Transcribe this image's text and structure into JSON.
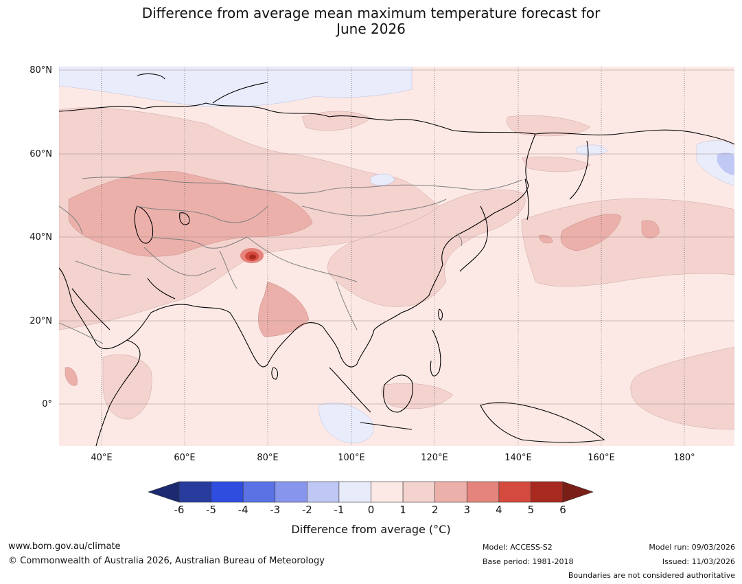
{
  "title": {
    "line1": "Difference from average mean maximum temperature forecast for",
    "line2": "June 2026"
  },
  "map": {
    "lat_labels": [
      "80°N",
      "60°N",
      "40°N",
      "20°N",
      "0°"
    ],
    "lon_labels": [
      "40°E",
      "60°E",
      "80°E",
      "100°E",
      "120°E",
      "140°E",
      "160°E",
      "180°"
    ],
    "ocean_color": "#fce9e6",
    "anomaly_colors": {
      "neg1_0": "#e9ecfa",
      "neg2_neg1": "#c0c8f4",
      "0_1": "#fce9e6",
      "1_2": "#f4d2ce",
      "2_3": "#ecb0aa",
      "3_4": "#e4847c",
      "4_5": "#d44a3e",
      "5_6": "#a8291f"
    }
  },
  "colorbar": {
    "ticks": [
      "-6",
      "-5",
      "-4",
      "-3",
      "-2",
      "-1",
      "0",
      "1",
      "2",
      "3",
      "4",
      "5",
      "6"
    ],
    "colors": [
      "#283c9e",
      "#2f4ee0",
      "#5a72e4",
      "#8796ec",
      "#bfc8f4",
      "#e8ebfa",
      "#fce9e6",
      "#f4d2ce",
      "#ecb0aa",
      "#e4847c",
      "#d44a3e",
      "#a8291f"
    ],
    "under_color": "#1c2a70",
    "over_color": "#7a1f18",
    "label": "Difference from average (°C)"
  },
  "footer": {
    "website": "www.bom.gov.au/climate",
    "copyright": "© Commonwealth of Australia 2026, Australian Bureau of Meteorology",
    "model": "Model: ACCESS-S2",
    "base_period": "Base period: 1981-2018",
    "model_run": "Model run: 09/03/2026",
    "issued": "Issued: 11/03/2026",
    "disclaimer": "Boundaries are not considered authoritative"
  }
}
